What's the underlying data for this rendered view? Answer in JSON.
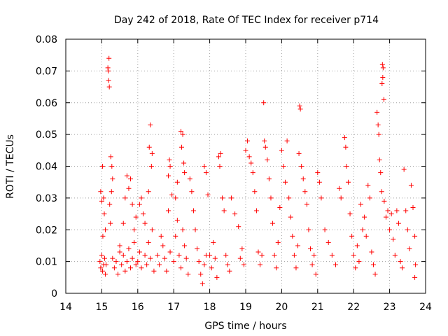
{
  "chart_data": {
    "type": "scatter",
    "title": "Day 242 of 2018, Rate Of TEC Index for receiver p714",
    "xlabel": "GPS time / hours",
    "ylabel": "ROTI / TECUs",
    "xlim": [
      14,
      24
    ],
    "ylim": [
      0,
      0.08
    ],
    "xticks": [
      "14",
      "15",
      "16",
      "17",
      "18",
      "19",
      "20",
      "21",
      "22",
      "23",
      "24"
    ],
    "yticks": [
      "0",
      "0.01",
      "0.02",
      "0.03",
      "0.04",
      "0.05",
      "0.06",
      "0.07",
      "0.08"
    ],
    "grid": true,
    "marker": "+",
    "color": "#ff0000",
    "series": [
      {
        "name": "ROTI",
        "points": [
          [
            14.95,
            0.01
          ],
          [
            14.97,
            0.008
          ],
          [
            15.0,
            0.012
          ],
          [
            15.02,
            0.007
          ],
          [
            15.05,
            0.009
          ],
          [
            15.08,
            0.011
          ],
          [
            15.1,
            0.006
          ],
          [
            15.12,
            0.009
          ],
          [
            14.97,
            0.032
          ],
          [
            15.0,
            0.029
          ],
          [
            15.02,
            0.04
          ],
          [
            15.05,
            0.03
          ],
          [
            15.07,
            0.025
          ],
          [
            15.1,
            0.02
          ],
          [
            15.03,
            0.018
          ],
          [
            15.18,
            0.07
          ],
          [
            15.2,
            0.074
          ],
          [
            15.19,
            0.067
          ],
          [
            15.21,
            0.065
          ],
          [
            15.17,
            0.071
          ],
          [
            15.25,
            0.043
          ],
          [
            15.28,
            0.04
          ],
          [
            15.3,
            0.036
          ],
          [
            15.27,
            0.032
          ],
          [
            15.22,
            0.028
          ],
          [
            15.24,
            0.022
          ],
          [
            15.3,
            0.011
          ],
          [
            15.35,
            0.008
          ],
          [
            15.4,
            0.01
          ],
          [
            15.45,
            0.006
          ],
          [
            15.5,
            0.013
          ],
          [
            15.55,
            0.009
          ],
          [
            15.6,
            0.012
          ],
          [
            15.65,
            0.007
          ],
          [
            15.7,
            0.01
          ],
          [
            15.75,
            0.014
          ],
          [
            15.8,
            0.008
          ],
          [
            15.85,
            0.011
          ],
          [
            15.9,
            0.016
          ],
          [
            15.95,
            0.009
          ],
          [
            15.5,
            0.015
          ],
          [
            15.6,
            0.022
          ],
          [
            15.65,
            0.03
          ],
          [
            15.7,
            0.037
          ],
          [
            15.75,
            0.033
          ],
          [
            15.8,
            0.036
          ],
          [
            15.85,
            0.028
          ],
          [
            15.9,
            0.02
          ],
          [
            15.95,
            0.024
          ],
          [
            16.0,
            0.01
          ],
          [
            16.05,
            0.013
          ],
          [
            16.1,
            0.008
          ],
          [
            16.15,
            0.025
          ],
          [
            16.2,
            0.012
          ],
          [
            16.25,
            0.009
          ],
          [
            16.3,
            0.016
          ],
          [
            16.35,
            0.011
          ],
          [
            16.4,
            0.02
          ],
          [
            16.45,
            0.007
          ],
          [
            16.05,
            0.028
          ],
          [
            16.1,
            0.03
          ],
          [
            16.2,
            0.022
          ],
          [
            16.3,
            0.032
          ],
          [
            16.32,
            0.046
          ],
          [
            16.35,
            0.053
          ],
          [
            16.38,
            0.04
          ],
          [
            16.4,
            0.044
          ],
          [
            16.55,
            0.012
          ],
          [
            16.6,
            0.009
          ],
          [
            16.65,
            0.018
          ],
          [
            16.7,
            0.015
          ],
          [
            16.75,
            0.011
          ],
          [
            16.8,
            0.007
          ],
          [
            16.85,
            0.026
          ],
          [
            16.9,
            0.013
          ],
          [
            16.88,
            0.042
          ],
          [
            16.9,
            0.04
          ],
          [
            16.85,
            0.037
          ],
          [
            16.95,
            0.031
          ],
          [
            17.0,
            0.01
          ],
          [
            17.05,
            0.018
          ],
          [
            17.1,
            0.023
          ],
          [
            17.15,
            0.012
          ],
          [
            17.2,
            0.008
          ],
          [
            17.25,
            0.02
          ],
          [
            17.3,
            0.015
          ],
          [
            17.35,
            0.011
          ],
          [
            17.4,
            0.006
          ],
          [
            17.2,
            0.051
          ],
          [
            17.25,
            0.05
          ],
          [
            17.22,
            0.046
          ],
          [
            17.28,
            0.041
          ],
          [
            17.3,
            0.038
          ],
          [
            17.1,
            0.035
          ],
          [
            17.05,
            0.03
          ],
          [
            17.45,
            0.036
          ],
          [
            17.5,
            0.032
          ],
          [
            17.55,
            0.026
          ],
          [
            17.6,
            0.02
          ],
          [
            17.65,
            0.014
          ],
          [
            17.7,
            0.01
          ],
          [
            17.75,
            0.006
          ],
          [
            17.8,
            0.003
          ],
          [
            17.85,
            0.009
          ],
          [
            17.9,
            0.012
          ],
          [
            17.85,
            0.04
          ],
          [
            17.9,
            0.038
          ],
          [
            17.95,
            0.031
          ],
          [
            18.0,
            0.012
          ],
          [
            18.05,
            0.008
          ],
          [
            18.1,
            0.016
          ],
          [
            18.15,
            0.011
          ],
          [
            18.2,
            0.005
          ],
          [
            18.25,
            0.043
          ],
          [
            18.3,
            0.044
          ],
          [
            18.28,
            0.04
          ],
          [
            18.35,
            0.03
          ],
          [
            18.4,
            0.026
          ],
          [
            18.45,
            0.012
          ],
          [
            18.5,
            0.009
          ],
          [
            18.55,
            0.007
          ],
          [
            18.6,
            0.03
          ],
          [
            18.7,
            0.025
          ],
          [
            18.8,
            0.021
          ],
          [
            18.85,
            0.011
          ],
          [
            18.9,
            0.014
          ],
          [
            18.95,
            0.009
          ],
          [
            19.0,
            0.045
          ],
          [
            19.05,
            0.048
          ],
          [
            19.1,
            0.043
          ],
          [
            19.15,
            0.041
          ],
          [
            19.2,
            0.038
          ],
          [
            19.25,
            0.032
          ],
          [
            19.3,
            0.026
          ],
          [
            19.35,
            0.013
          ],
          [
            19.4,
            0.009
          ],
          [
            19.45,
            0.012
          ],
          [
            19.5,
            0.06
          ],
          [
            19.52,
            0.048
          ],
          [
            19.55,
            0.046
          ],
          [
            19.6,
            0.042
          ],
          [
            19.65,
            0.036
          ],
          [
            19.7,
            0.03
          ],
          [
            19.75,
            0.022
          ],
          [
            19.8,
            0.012
          ],
          [
            19.85,
            0.008
          ],
          [
            19.9,
            0.016
          ],
          [
            19.95,
            0.027
          ],
          [
            20.0,
            0.045
          ],
          [
            20.05,
            0.04
          ],
          [
            20.1,
            0.035
          ],
          [
            20.15,
            0.048
          ],
          [
            20.2,
            0.03
          ],
          [
            20.25,
            0.024
          ],
          [
            20.3,
            0.018
          ],
          [
            20.35,
            0.012
          ],
          [
            20.4,
            0.008
          ],
          [
            20.45,
            0.015
          ],
          [
            20.5,
            0.059
          ],
          [
            20.52,
            0.058
          ],
          [
            20.48,
            0.044
          ],
          [
            20.55,
            0.04
          ],
          [
            20.6,
            0.036
          ],
          [
            20.65,
            0.032
          ],
          [
            20.7,
            0.028
          ],
          [
            20.75,
            0.02
          ],
          [
            20.8,
            0.014
          ],
          [
            20.85,
            0.009
          ],
          [
            20.9,
            0.012
          ],
          [
            20.95,
            0.006
          ],
          [
            21.0,
            0.038
          ],
          [
            21.05,
            0.035
          ],
          [
            21.1,
            0.03
          ],
          [
            21.2,
            0.02
          ],
          [
            21.3,
            0.016
          ],
          [
            21.4,
            0.012
          ],
          [
            21.5,
            0.009
          ],
          [
            21.6,
            0.033
          ],
          [
            21.65,
            0.03
          ],
          [
            21.75,
            0.049
          ],
          [
            21.78,
            0.046
          ],
          [
            21.8,
            0.04
          ],
          [
            21.85,
            0.035
          ],
          [
            21.9,
            0.025
          ],
          [
            21.95,
            0.018
          ],
          [
            22.0,
            0.012
          ],
          [
            22.05,
            0.008
          ],
          [
            22.1,
            0.015
          ],
          [
            22.15,
            0.01
          ],
          [
            22.2,
            0.028
          ],
          [
            22.25,
            0.02
          ],
          [
            22.3,
            0.024
          ],
          [
            22.35,
            0.018
          ],
          [
            22.4,
            0.034
          ],
          [
            22.45,
            0.03
          ],
          [
            22.5,
            0.013
          ],
          [
            22.55,
            0.009
          ],
          [
            22.6,
            0.006
          ],
          [
            22.65,
            0.057
          ],
          [
            22.68,
            0.053
          ],
          [
            22.7,
            0.05
          ],
          [
            22.72,
            0.042
          ],
          [
            22.75,
            0.038
          ],
          [
            22.78,
            0.032
          ],
          [
            22.8,
            0.072
          ],
          [
            22.82,
            0.071
          ],
          [
            22.81,
            0.068
          ],
          [
            22.79,
            0.066
          ],
          [
            22.84,
            0.061
          ],
          [
            22.85,
            0.029
          ],
          [
            22.9,
            0.024
          ],
          [
            22.95,
            0.026
          ],
          [
            23.0,
            0.02
          ],
          [
            23.05,
            0.025
          ],
          [
            23.1,
            0.017
          ],
          [
            23.15,
            0.012
          ],
          [
            23.2,
            0.026
          ],
          [
            23.25,
            0.022
          ],
          [
            23.3,
            0.01
          ],
          [
            23.35,
            0.008
          ],
          [
            23.4,
            0.039
          ],
          [
            23.45,
            0.026
          ],
          [
            23.5,
            0.02
          ],
          [
            23.55,
            0.014
          ],
          [
            23.6,
            0.034
          ],
          [
            23.65,
            0.027
          ],
          [
            23.7,
            0.018
          ],
          [
            23.72,
            0.009
          ],
          [
            23.7,
            0.005
          ]
        ]
      }
    ]
  }
}
